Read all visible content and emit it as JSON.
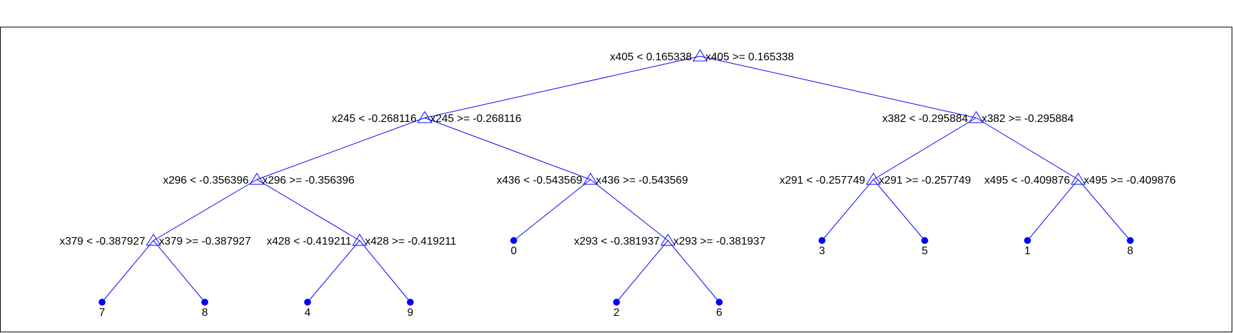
{
  "tree": {
    "style": {
      "line_color": "#0000ff",
      "node_color": "#0000ff",
      "text_color": "#000000",
      "frame_color": "#000000"
    },
    "nodes": [
      {
        "id": "n0",
        "type": "split",
        "left_label": "x405 < 0.165338",
        "right_label": "x405 >= 0.165338"
      },
      {
        "id": "n1",
        "type": "split",
        "parent": "n0",
        "left_label": "x245 < -0.268116",
        "right_label": "x245 >= -0.268116"
      },
      {
        "id": "n2",
        "type": "split",
        "parent": "n0",
        "left_label": "x382 < -0.295884",
        "right_label": "x382 >= -0.295884"
      },
      {
        "id": "n3",
        "type": "split",
        "parent": "n1",
        "left_label": "x296 < -0.356396",
        "right_label": "x296 >= -0.356396"
      },
      {
        "id": "n4",
        "type": "split",
        "parent": "n1",
        "left_label": "x436 < -0.543569",
        "right_label": "x436 >= -0.543569"
      },
      {
        "id": "n5",
        "type": "split",
        "parent": "n2",
        "left_label": "x291 < -0.257749",
        "right_label": "x291 >= -0.257749"
      },
      {
        "id": "n6",
        "type": "split",
        "parent": "n2",
        "left_label": "x495 < -0.409876",
        "right_label": "x495 >= -0.409876"
      },
      {
        "id": "n7",
        "type": "split",
        "parent": "n3",
        "left_label": "x379 < -0.387927",
        "right_label": "x379 >= -0.387927"
      },
      {
        "id": "n8",
        "type": "split",
        "parent": "n3",
        "left_label": "x428 < -0.419211",
        "right_label": "x428 >= -0.419211"
      },
      {
        "id": "n9",
        "type": "leaf",
        "parent": "n4",
        "label": "0"
      },
      {
        "id": "n10",
        "type": "split",
        "parent": "n4",
        "left_label": "x293 < -0.381937",
        "right_label": "x293 >= -0.381937"
      },
      {
        "id": "n11",
        "type": "leaf",
        "parent": "n5",
        "label": "3"
      },
      {
        "id": "n12",
        "type": "leaf",
        "parent": "n5",
        "label": "5"
      },
      {
        "id": "n13",
        "type": "leaf",
        "parent": "n6",
        "label": "1"
      },
      {
        "id": "n14",
        "type": "leaf",
        "parent": "n6",
        "label": "8"
      },
      {
        "id": "n15",
        "type": "leaf",
        "parent": "n7",
        "label": "7"
      },
      {
        "id": "n16",
        "type": "leaf",
        "parent": "n7",
        "label": "8"
      },
      {
        "id": "n17",
        "type": "leaf",
        "parent": "n8",
        "label": "4"
      },
      {
        "id": "n18",
        "type": "leaf",
        "parent": "n8",
        "label": "9"
      },
      {
        "id": "n19",
        "type": "leaf",
        "parent": "n10",
        "label": "2"
      },
      {
        "id": "n20",
        "type": "leaf",
        "parent": "n10",
        "label": "6"
      }
    ]
  }
}
